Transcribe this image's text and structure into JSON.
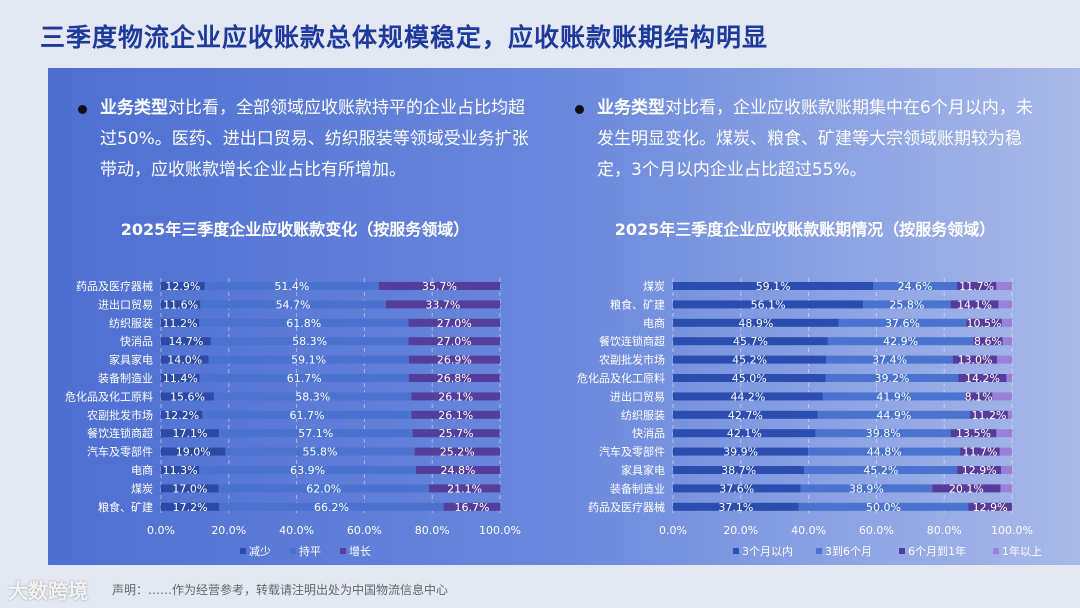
{
  "title": "三季度物流企业应收账款总体规模稳定，应收账款账期结构明显",
  "bullets": [
    {
      "bold": "业务类型",
      "text": "对比看，全部领域应收账款持平的企业占比均超过50%。医药、进出口贸易、纺织服装等领域受业务扩张带动，应收账款增长企业占比有所增加。"
    },
    {
      "bold": "业务类型",
      "text": "对比看，企业应收账款账期集中在6个月以内，未发生明显变化。煤炭、粮食、矿建等大宗领域账期较为稳定，3个月以内企业占比超过55%。"
    }
  ],
  "footer": "声明：……作为经营参考，转载请注明出处为中国物流信息中心",
  "watermark": "大数跨境",
  "chart_data": [
    {
      "type": "bar",
      "orientation": "horizontal",
      "stacked": true,
      "title": "2025年三季度企业应收账款变化（按服务领域）",
      "categories": [
        "药品及医疗器械",
        "进出口贸易",
        "纺织服装",
        "快消品",
        "家具家电",
        "装备制造业",
        "危化品及化工原料",
        "农副批发市场",
        "餐饮连锁商超",
        "汽车及零部件",
        "电商",
        "煤炭",
        "粮食、矿建"
      ],
      "series": [
        {
          "name": "减少",
          "color": "#2b4aa6",
          "values": [
            12.9,
            11.6,
            11.2,
            14.7,
            14.0,
            11.4,
            15.6,
            12.2,
            17.1,
            19.0,
            11.3,
            17.0,
            17.2
          ]
        },
        {
          "name": "持平",
          "color": "#4b72cf",
          "values": [
            51.4,
            54.7,
            61.8,
            58.3,
            59.1,
            61.7,
            58.3,
            61.7,
            57.1,
            55.8,
            63.9,
            62.0,
            66.2
          ]
        },
        {
          "name": "增长",
          "color": "#553d9b",
          "values": [
            35.7,
            33.7,
            27.0,
            27.0,
            26.9,
            26.8,
            26.1,
            26.1,
            25.7,
            25.2,
            24.8,
            21.1,
            16.7
          ]
        }
      ],
      "xlim": [
        0,
        100
      ],
      "xticks": [
        "0.0%",
        "20.0%",
        "40.0%",
        "60.0%",
        "80.0%",
        "100.0%"
      ],
      "grid": true,
      "legend": "bottom"
    },
    {
      "type": "bar",
      "orientation": "horizontal",
      "stacked": true,
      "title": "2025年三季度企业应收账款账期情况（按服务领域）",
      "categories": [
        "煤炭",
        "粮食、矿建",
        "电商",
        "餐饮连锁商超",
        "农副批发市场",
        "危化品及化工原料",
        "进出口贸易",
        "纺织服装",
        "快消品",
        "汽车及零部件",
        "家具家电",
        "装备制造业",
        "药品及医疗器械"
      ],
      "series": [
        {
          "name": "3个月以内",
          "color": "#2c4db0",
          "values": [
            59.1,
            56.1,
            48.9,
            45.7,
            45.2,
            45.0,
            44.2,
            42.7,
            42.1,
            39.9,
            38.7,
            37.6,
            37.1
          ]
        },
        {
          "name": "3到6个月",
          "color": "#4a72cf",
          "values": [
            24.6,
            25.8,
            37.6,
            42.9,
            37.4,
            39.2,
            41.9,
            44.9,
            39.8,
            44.8,
            45.2,
            38.9,
            50.0
          ]
        },
        {
          "name": "6个月到1年",
          "color": "#553c9a",
          "values": [
            11.7,
            14.1,
            10.5,
            8.6,
            13.0,
            14.2,
            8.1,
            11.2,
            13.5,
            11.7,
            12.9,
            20.1,
            12.9
          ]
        },
        {
          "name": "1年以上",
          "color": "#9b80d8",
          "values": [
            4.6,
            4.0,
            3.0,
            2.8,
            4.4,
            1.6,
            5.8,
            1.2,
            4.6,
            3.6,
            3.2,
            3.4,
            0.0
          ],
          "labels_shown": false
        }
      ],
      "xlim": [
        0,
        100
      ],
      "xticks": [
        "0.0%",
        "20.0%",
        "40.0%",
        "60.0%",
        "80.0%",
        "100.0%"
      ],
      "grid": true,
      "legend": "bottom"
    }
  ]
}
